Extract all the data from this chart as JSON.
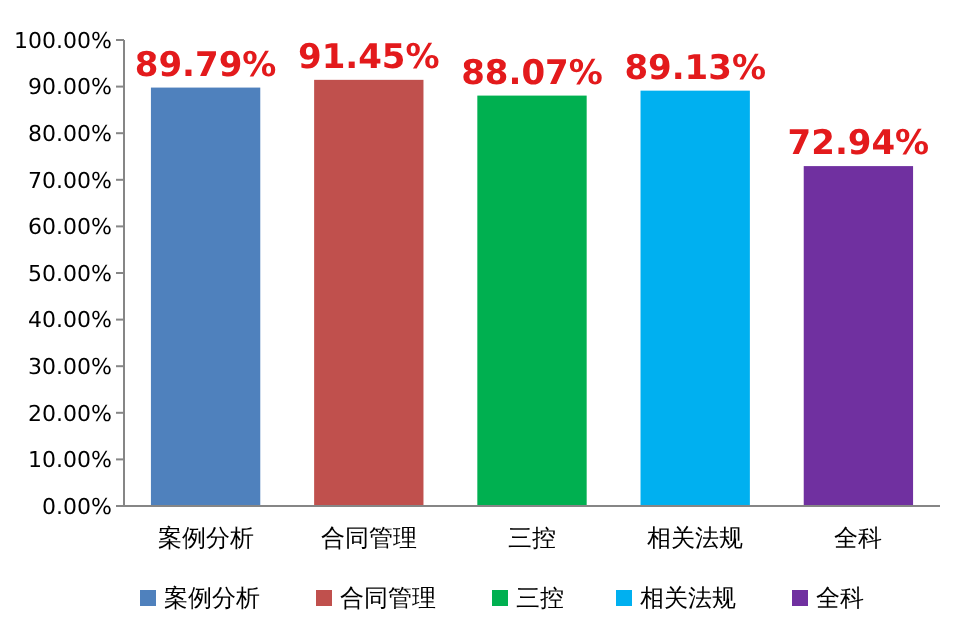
{
  "chart_data": {
    "type": "bar",
    "categories": [
      "案例分析",
      "合同管理",
      "三控",
      "相关法规",
      "全科"
    ],
    "series": [
      {
        "name": "案例分析",
        "color": "#4f81bd",
        "values": [
          89.79,
          null,
          null,
          null,
          null
        ],
        "value_labels": [
          "89.79%",
          null,
          null,
          null,
          null
        ]
      },
      {
        "name": "合同管理",
        "color": "#c0504d",
        "values": [
          null,
          91.45,
          null,
          null,
          null
        ],
        "value_labels": [
          null,
          "91.45%",
          null,
          null,
          null
        ]
      },
      {
        "name": "三控",
        "color": "#00b050",
        "values": [
          null,
          null,
          88.07,
          null,
          null
        ],
        "value_labels": [
          null,
          null,
          "88.07%",
          null,
          null
        ]
      },
      {
        "name": "相关法规",
        "color": "#00b0f0",
        "values": [
          null,
          null,
          null,
          89.13,
          null
        ],
        "value_labels": [
          null,
          null,
          null,
          "89.13%",
          null
        ]
      },
      {
        "name": "全科",
        "color": "#7030a0",
        "values": [
          null,
          null,
          null,
          null,
          72.94
        ],
        "value_labels": [
          null,
          null,
          null,
          null,
          "72.94%"
        ]
      }
    ],
    "ylim": [
      0,
      100
    ],
    "yticks": [
      {
        "value": 0,
        "label": "0.00%"
      },
      {
        "value": 10,
        "label": "10.00%"
      },
      {
        "value": 20,
        "label": "20.00%"
      },
      {
        "value": 30,
        "label": "30.00%"
      },
      {
        "value": 40,
        "label": "40.00%"
      },
      {
        "value": 50,
        "label": "50.00%"
      },
      {
        "value": 60,
        "label": "60.00%"
      },
      {
        "value": 70,
        "label": "70.00%"
      },
      {
        "value": 80,
        "label": "80.00%"
      },
      {
        "value": 90,
        "label": "90.00%"
      },
      {
        "value": 100,
        "label": "100.00%"
      }
    ],
    "legend": "bottom",
    "grid": false
  }
}
